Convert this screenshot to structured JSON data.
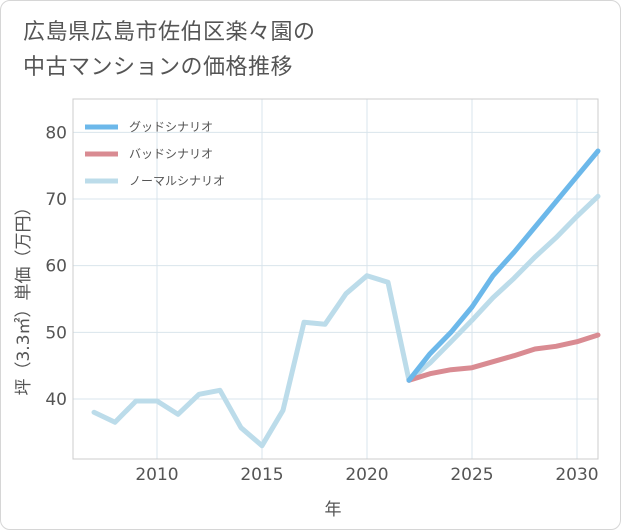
{
  "title_line1": "広島県広島市佐伯区楽々園の",
  "title_line2": "中古マンションの価格推移",
  "chart_data": {
    "type": "line",
    "xlabel": "年",
    "ylabel": "坪（3.3㎡）単価（万円）",
    "xlim": [
      2006,
      2031
    ],
    "ylim": [
      31,
      85
    ],
    "xticks": [
      2010,
      2015,
      2020,
      2025,
      2030
    ],
    "yticks": [
      40,
      50,
      60,
      70,
      80
    ],
    "grid": true,
    "legend_position": "top-left",
    "series": [
      {
        "name": "グッドシナリオ",
        "color": "#6cb8ea",
        "x": [
          2022,
          2023,
          2024,
          2025,
          2026,
          2027,
          2028,
          2029,
          2030,
          2031
        ],
        "y": [
          42.8,
          46.8,
          50.0,
          53.8,
          58.5,
          62.0,
          65.8,
          69.6,
          73.4,
          77.2
        ]
      },
      {
        "name": "バッドシナリオ",
        "color": "#d98b92",
        "x": [
          2022,
          2023,
          2024,
          2025,
          2026,
          2027,
          2028,
          2029,
          2030,
          2031
        ],
        "y": [
          42.8,
          43.8,
          44.4,
          44.7,
          45.6,
          46.5,
          47.5,
          47.9,
          48.6,
          49.6
        ]
      },
      {
        "name": "ノーマルシナリオ",
        "color": "#bcdcea",
        "x": [
          2007,
          2008,
          2009,
          2010,
          2011,
          2012,
          2013,
          2014,
          2015,
          2016,
          2017,
          2018,
          2019,
          2020,
          2021,
          2022,
          2023,
          2024,
          2025,
          2026,
          2027,
          2028,
          2029,
          2030,
          2031
        ],
        "y": [
          38.0,
          36.5,
          39.7,
          39.7,
          37.7,
          40.7,
          41.3,
          35.7,
          33.0,
          38.3,
          51.5,
          51.2,
          55.8,
          58.5,
          57.5,
          42.8,
          45.4,
          48.6,
          51.8,
          55.2,
          58.1,
          61.3,
          64.2,
          67.4,
          70.4
        ]
      }
    ]
  }
}
